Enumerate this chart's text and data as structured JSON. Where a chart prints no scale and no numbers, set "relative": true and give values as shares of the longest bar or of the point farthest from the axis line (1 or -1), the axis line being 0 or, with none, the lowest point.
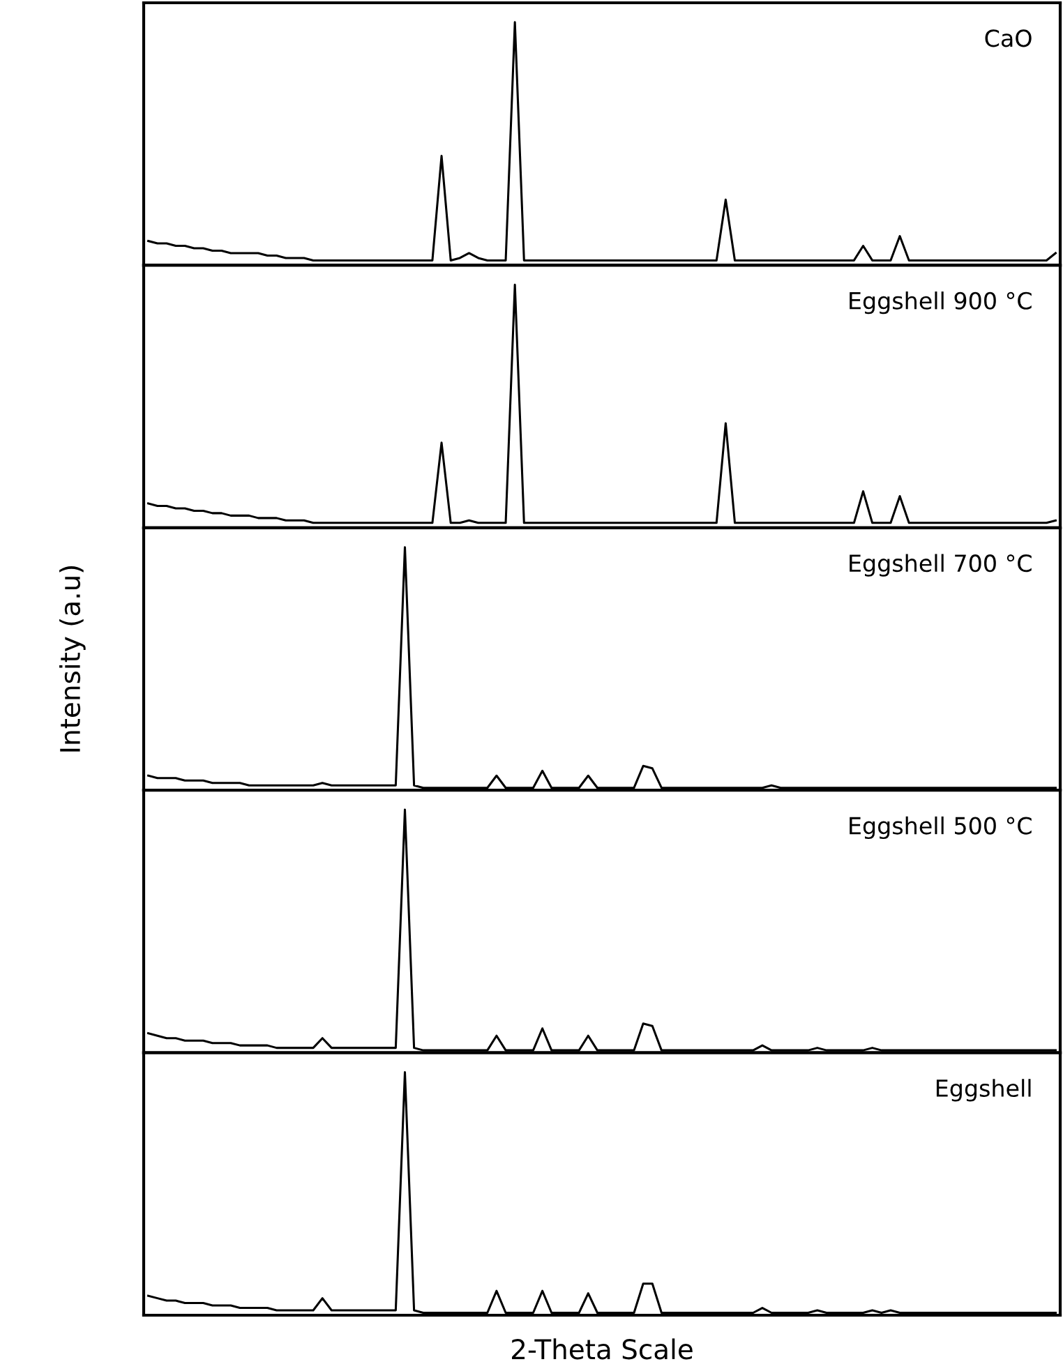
{
  "chart_data": [
    {
      "type": "line",
      "relative": true,
      "tick_labels": false,
      "categories": [
        null,
        null,
        null,
        null,
        null,
        null,
        null,
        null,
        null,
        null,
        null,
        null,
        null,
        null,
        null,
        null,
        null,
        null,
        null,
        null,
        null,
        null,
        null,
        null,
        null,
        null,
        null,
        null,
        null,
        null,
        null,
        null,
        null,
        null,
        null,
        null,
        null,
        null,
        null,
        null,
        null,
        null,
        null,
        null,
        null,
        null,
        null,
        null,
        null,
        null,
        null,
        null,
        null,
        null,
        null,
        null,
        null,
        null,
        null,
        null,
        null,
        null,
        null,
        null,
        null,
        null,
        null,
        null,
        null,
        null,
        null,
        null,
        null,
        null,
        null,
        null,
        null,
        null,
        null,
        null,
        null,
        null,
        null,
        null,
        null,
        null,
        null,
        null,
        null,
        null,
        null,
        null,
        null,
        null,
        null,
        null,
        null,
        null,
        null,
        null
      ],
      "series": [
        {
          "name": "CaO",
          "color": "#000000",
          "values": [
            0.1,
            0.09,
            0.09,
            0.08,
            0.08,
            0.07,
            0.07,
            0.06,
            0.06,
            0.05,
            0.05,
            0.05,
            0.05,
            0.04,
            0.04,
            0.03,
            0.03,
            0.03,
            0.02,
            0.02,
            0.02,
            0.02,
            0.02,
            0.02,
            0.02,
            0.02,
            0.02,
            0.02,
            0.02,
            0.02,
            0.02,
            0.02,
            0.45,
            0.02,
            0.03,
            0.05,
            0.03,
            0.02,
            0.02,
            0.02,
            1.0,
            0.02,
            0.02,
            0.02,
            0.02,
            0.02,
            0.02,
            0.02,
            0.02,
            0.02,
            0.02,
            0.02,
            0.02,
            0.02,
            0.02,
            0.02,
            0.02,
            0.02,
            0.02,
            0.02,
            0.02,
            0.02,
            0.02,
            0.27,
            0.02,
            0.02,
            0.02,
            0.02,
            0.02,
            0.02,
            0.02,
            0.02,
            0.02,
            0.02,
            0.02,
            0.02,
            0.02,
            0.02,
            0.08,
            0.02,
            0.02,
            0.02,
            0.12,
            0.02,
            0.02,
            0.02,
            0.02,
            0.02,
            0.02,
            0.02,
            0.02,
            0.02,
            0.02,
            0.02,
            0.02,
            0.02,
            0.02,
            0.02,
            0.02,
            0.05
          ]
        }
      ]
    },
    {
      "type": "line",
      "relative": true,
      "tick_labels": false,
      "categories": [
        null,
        null,
        null,
        null,
        null,
        null,
        null,
        null,
        null,
        null,
        null,
        null,
        null,
        null,
        null,
        null,
        null,
        null,
        null,
        null,
        null,
        null,
        null,
        null,
        null,
        null,
        null,
        null,
        null,
        null,
        null,
        null,
        null,
        null,
        null,
        null,
        null,
        null,
        null,
        null,
        null,
        null,
        null,
        null,
        null,
        null,
        null,
        null,
        null,
        null,
        null,
        null,
        null,
        null,
        null,
        null,
        null,
        null,
        null,
        null,
        null,
        null,
        null,
        null,
        null,
        null,
        null,
        null,
        null,
        null,
        null,
        null,
        null,
        null,
        null,
        null,
        null,
        null,
        null,
        null,
        null,
        null,
        null,
        null,
        null,
        null,
        null,
        null,
        null,
        null,
        null,
        null,
        null,
        null,
        null,
        null,
        null,
        null,
        null,
        null
      ],
      "series": [
        {
          "name": "Eggshell 900 °C",
          "color": "#000000",
          "values": [
            0.1,
            0.09,
            0.09,
            0.08,
            0.08,
            0.07,
            0.07,
            0.06,
            0.06,
            0.05,
            0.05,
            0.05,
            0.04,
            0.04,
            0.04,
            0.03,
            0.03,
            0.03,
            0.02,
            0.02,
            0.02,
            0.02,
            0.02,
            0.02,
            0.02,
            0.02,
            0.02,
            0.02,
            0.02,
            0.02,
            0.02,
            0.02,
            0.35,
            0.02,
            0.02,
            0.03,
            0.02,
            0.02,
            0.02,
            0.02,
            1.0,
            0.02,
            0.02,
            0.02,
            0.02,
            0.02,
            0.02,
            0.02,
            0.02,
            0.02,
            0.02,
            0.02,
            0.02,
            0.02,
            0.02,
            0.02,
            0.02,
            0.02,
            0.02,
            0.02,
            0.02,
            0.02,
            0.02,
            0.43,
            0.02,
            0.02,
            0.02,
            0.02,
            0.02,
            0.02,
            0.02,
            0.02,
            0.02,
            0.02,
            0.02,
            0.02,
            0.02,
            0.02,
            0.15,
            0.02,
            0.02,
            0.02,
            0.13,
            0.02,
            0.02,
            0.02,
            0.02,
            0.02,
            0.02,
            0.02,
            0.02,
            0.02,
            0.02,
            0.02,
            0.02,
            0.02,
            0.02,
            0.02,
            0.02,
            0.03
          ]
        }
      ]
    },
    {
      "type": "line",
      "relative": true,
      "tick_labels": false,
      "ylabel": "Intensity (a.u)",
      "categories": [
        null,
        null,
        null,
        null,
        null,
        null,
        null,
        null,
        null,
        null,
        null,
        null,
        null,
        null,
        null,
        null,
        null,
        null,
        null,
        null,
        null,
        null,
        null,
        null,
        null,
        null,
        null,
        null,
        null,
        null,
        null,
        null,
        null,
        null,
        null,
        null,
        null,
        null,
        null,
        null,
        null,
        null,
        null,
        null,
        null,
        null,
        null,
        null,
        null,
        null,
        null,
        null,
        null,
        null,
        null,
        null,
        null,
        null,
        null,
        null,
        null,
        null,
        null,
        null,
        null,
        null,
        null,
        null,
        null,
        null,
        null,
        null,
        null,
        null,
        null,
        null,
        null,
        null,
        null,
        null,
        null,
        null,
        null,
        null,
        null,
        null,
        null,
        null,
        null,
        null,
        null,
        null,
        null,
        null,
        null,
        null,
        null,
        null,
        null,
        null
      ],
      "series": [
        {
          "name": "Eggshell 700 °C",
          "color": "#000000",
          "values": [
            0.06,
            0.05,
            0.05,
            0.05,
            0.04,
            0.04,
            0.04,
            0.03,
            0.03,
            0.03,
            0.03,
            0.02,
            0.02,
            0.02,
            0.02,
            0.02,
            0.02,
            0.02,
            0.02,
            0.03,
            0.02,
            0.02,
            0.02,
            0.02,
            0.02,
            0.02,
            0.02,
            0.02,
            1.0,
            0.02,
            0.01,
            0.01,
            0.01,
            0.01,
            0.01,
            0.01,
            0.01,
            0.01,
            0.06,
            0.01,
            0.01,
            0.01,
            0.01,
            0.08,
            0.01,
            0.01,
            0.01,
            0.01,
            0.06,
            0.01,
            0.01,
            0.01,
            0.01,
            0.01,
            0.1,
            0.09,
            0.01,
            0.01,
            0.01,
            0.01,
            0.01,
            0.01,
            0.01,
            0.01,
            0.01,
            0.01,
            0.01,
            0.01,
            0.02,
            0.01,
            0.01,
            0.01,
            0.01,
            0.01,
            0.01,
            0.01,
            0.01,
            0.01,
            0.01,
            0.01,
            0.01,
            0.01,
            0.01,
            0.01,
            0.01,
            0.01,
            0.01,
            0.01,
            0.01,
            0.01,
            0.01,
            0.01,
            0.01,
            0.01,
            0.01,
            0.01,
            0.01,
            0.01,
            0.01,
            0.01
          ]
        }
      ]
    },
    {
      "type": "line",
      "relative": true,
      "tick_labels": false,
      "categories": [
        null,
        null,
        null,
        null,
        null,
        null,
        null,
        null,
        null,
        null,
        null,
        null,
        null,
        null,
        null,
        null,
        null,
        null,
        null,
        null,
        null,
        null,
        null,
        null,
        null,
        null,
        null,
        null,
        null,
        null,
        null,
        null,
        null,
        null,
        null,
        null,
        null,
        null,
        null,
        null,
        null,
        null,
        null,
        null,
        null,
        null,
        null,
        null,
        null,
        null,
        null,
        null,
        null,
        null,
        null,
        null,
        null,
        null,
        null,
        null,
        null,
        null,
        null,
        null,
        null,
        null,
        null,
        null,
        null,
        null,
        null,
        null,
        null,
        null,
        null,
        null,
        null,
        null,
        null,
        null,
        null,
        null,
        null,
        null,
        null,
        null,
        null,
        null,
        null,
        null,
        null,
        null,
        null,
        null,
        null,
        null,
        null,
        null,
        null,
        null
      ],
      "series": [
        {
          "name": "Eggshell 500 °C",
          "color": "#000000",
          "values": [
            0.08,
            0.07,
            0.06,
            0.06,
            0.05,
            0.05,
            0.05,
            0.04,
            0.04,
            0.04,
            0.03,
            0.03,
            0.03,
            0.03,
            0.02,
            0.02,
            0.02,
            0.02,
            0.02,
            0.06,
            0.02,
            0.02,
            0.02,
            0.02,
            0.02,
            0.02,
            0.02,
            0.02,
            1.0,
            0.02,
            0.01,
            0.01,
            0.01,
            0.01,
            0.01,
            0.01,
            0.01,
            0.01,
            0.07,
            0.01,
            0.01,
            0.01,
            0.01,
            0.1,
            0.01,
            0.01,
            0.01,
            0.01,
            0.07,
            0.01,
            0.01,
            0.01,
            0.01,
            0.01,
            0.12,
            0.11,
            0.01,
            0.01,
            0.01,
            0.01,
            0.01,
            0.01,
            0.01,
            0.01,
            0.01,
            0.01,
            0.01,
            0.03,
            0.01,
            0.01,
            0.01,
            0.01,
            0.01,
            0.02,
            0.01,
            0.01,
            0.01,
            0.01,
            0.01,
            0.02,
            0.01,
            0.01,
            0.01,
            0.01,
            0.01,
            0.01,
            0.01,
            0.01,
            0.01,
            0.01,
            0.01,
            0.01,
            0.01,
            0.01,
            0.01,
            0.01,
            0.01,
            0.01,
            0.01,
            0.01
          ]
        }
      ]
    },
    {
      "type": "line",
      "relative": true,
      "tick_labels": false,
      "xlabel": "2-Theta Scale",
      "categories": [
        null,
        null,
        null,
        null,
        null,
        null,
        null,
        null,
        null,
        null,
        null,
        null,
        null,
        null,
        null,
        null,
        null,
        null,
        null,
        null,
        null,
        null,
        null,
        null,
        null,
        null,
        null,
        null,
        null,
        null,
        null,
        null,
        null,
        null,
        null,
        null,
        null,
        null,
        null,
        null,
        null,
        null,
        null,
        null,
        null,
        null,
        null,
        null,
        null,
        null,
        null,
        null,
        null,
        null,
        null,
        null,
        null,
        null,
        null,
        null,
        null,
        null,
        null,
        null,
        null,
        null,
        null,
        null,
        null,
        null,
        null,
        null,
        null,
        null,
        null,
        null,
        null,
        null,
        null,
        null,
        null,
        null,
        null,
        null,
        null,
        null,
        null,
        null,
        null,
        null,
        null,
        null,
        null,
        null,
        null,
        null,
        null,
        null,
        null,
        null
      ],
      "series": [
        {
          "name": "Eggshell",
          "color": "#000000",
          "values": [
            0.08,
            0.07,
            0.06,
            0.06,
            0.05,
            0.05,
            0.05,
            0.04,
            0.04,
            0.04,
            0.03,
            0.03,
            0.03,
            0.03,
            0.02,
            0.02,
            0.02,
            0.02,
            0.02,
            0.07,
            0.02,
            0.02,
            0.02,
            0.02,
            0.02,
            0.02,
            0.02,
            0.02,
            1.0,
            0.02,
            0.01,
            0.01,
            0.01,
            0.01,
            0.01,
            0.01,
            0.01,
            0.01,
            0.1,
            0.01,
            0.01,
            0.01,
            0.01,
            0.1,
            0.01,
            0.01,
            0.01,
            0.01,
            0.09,
            0.01,
            0.01,
            0.01,
            0.01,
            0.01,
            0.13,
            0.13,
            0.01,
            0.01,
            0.01,
            0.01,
            0.01,
            0.01,
            0.01,
            0.01,
            0.01,
            0.01,
            0.01,
            0.03,
            0.01,
            0.01,
            0.01,
            0.01,
            0.01,
            0.02,
            0.01,
            0.01,
            0.01,
            0.01,
            0.01,
            0.02,
            0.01,
            0.02,
            0.01,
            0.01,
            0.01,
            0.01,
            0.01,
            0.01,
            0.01,
            0.01,
            0.01,
            0.01,
            0.01,
            0.01,
            0.01,
            0.01,
            0.01,
            0.01,
            0.01,
            0.01
          ]
        }
      ]
    }
  ]
}
